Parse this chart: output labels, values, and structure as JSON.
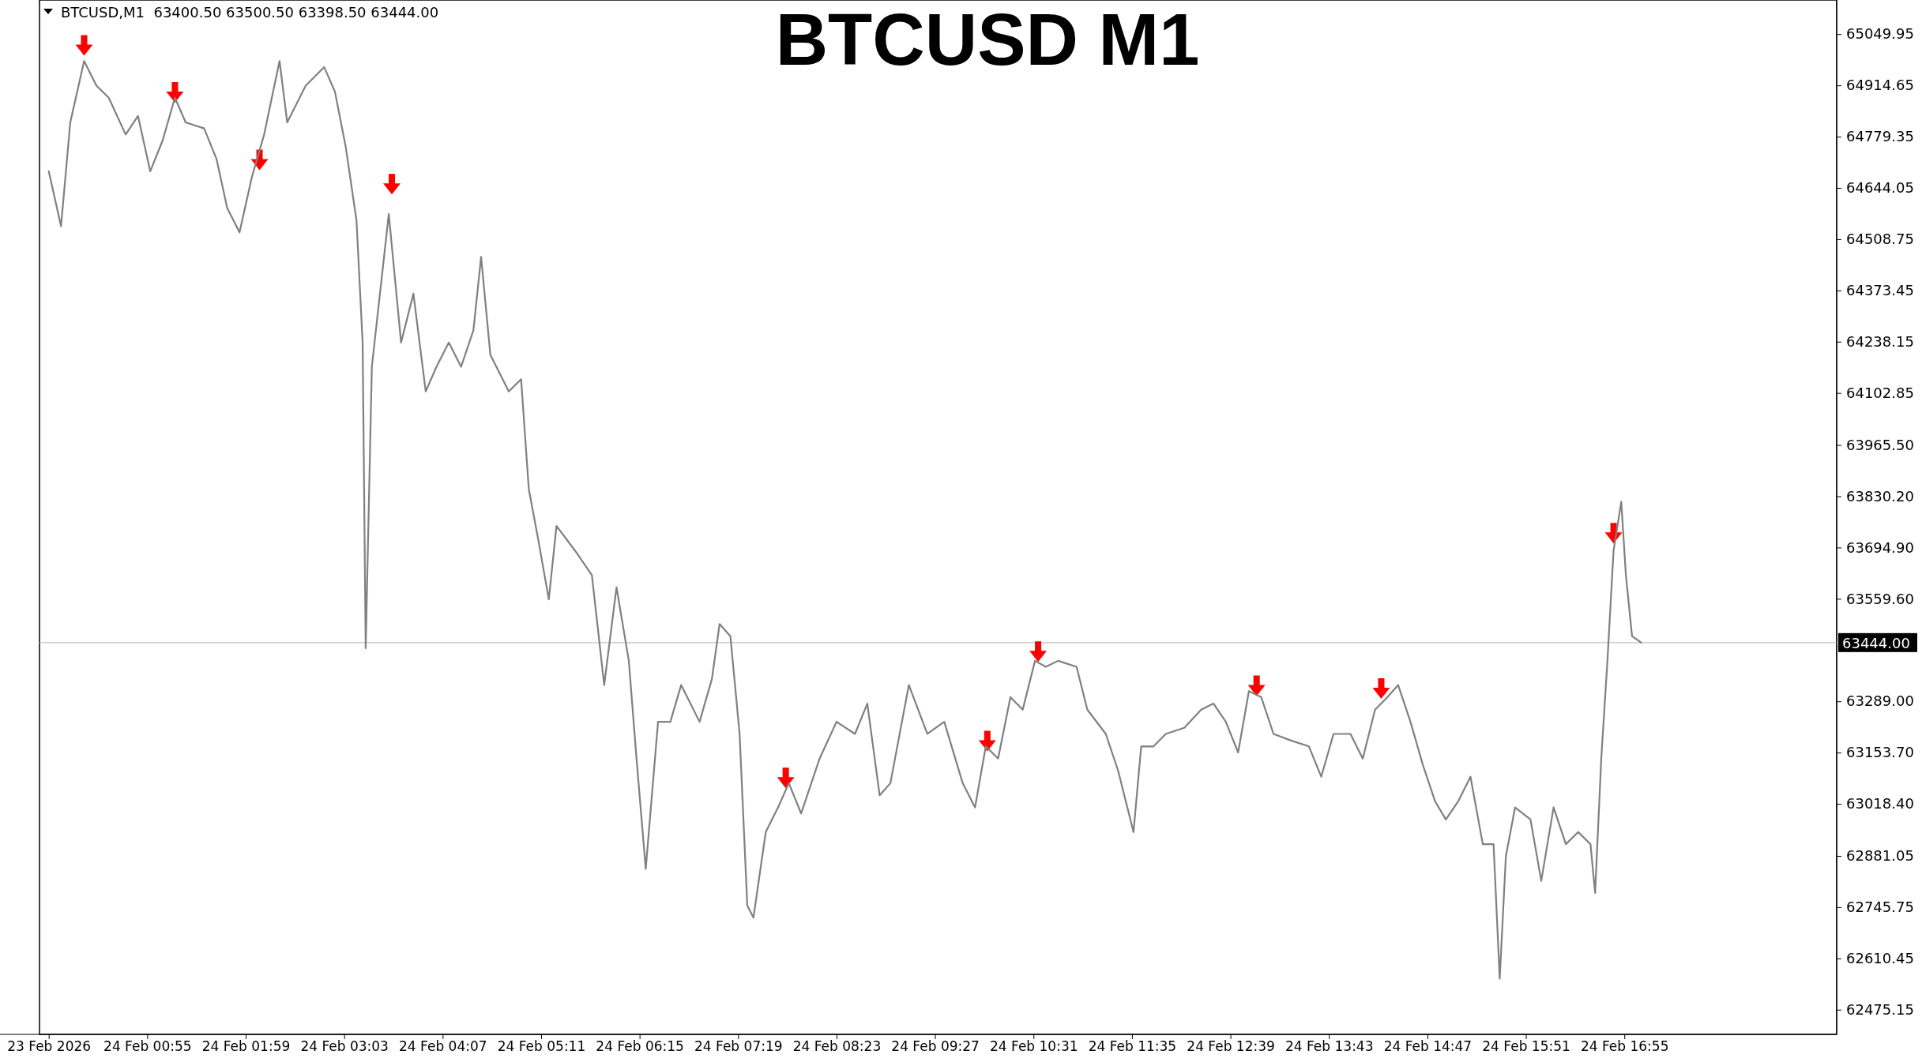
{
  "chart_data": {
    "type": "line",
    "title": "BTCUSD M1",
    "annotations": [
      "BTCUSD,M1  63400.50 63500.50 63398.50 63444.00"
    ],
    "xlim": [
      "2026-02-23T23:45",
      "2026-02-24T19:13"
    ],
    "xticks": [
      {
        "value": "2026-02-23T23:51",
        "label": "23 Feb 2026"
      },
      {
        "value": "2026-02-24T00:55",
        "label": "24 Feb 00:55"
      },
      {
        "value": "2026-02-24T01:59",
        "label": "24 Feb 01:59"
      },
      {
        "value": "2026-02-24T03:03",
        "label": "24 Feb 03:03"
      },
      {
        "value": "2026-02-24T04:07",
        "label": "24 Feb 04:07"
      },
      {
        "value": "2026-02-24T05:11",
        "label": "24 Feb 05:11"
      },
      {
        "value": "2026-02-24T06:15",
        "label": "24 Feb 06:15"
      },
      {
        "value": "2026-02-24T07:19",
        "label": "24 Feb 07:19"
      },
      {
        "value": "2026-02-24T08:23",
        "label": "24 Feb 08:23"
      },
      {
        "value": "2026-02-24T09:27",
        "label": "24 Feb 09:27"
      },
      {
        "value": "2026-02-24T10:31",
        "label": "24 Feb 10:31"
      },
      {
        "value": "2026-02-24T11:35",
        "label": "24 Feb 11:35"
      },
      {
        "value": "2026-02-24T12:39",
        "label": "24 Feb 12:39"
      },
      {
        "value": "2026-02-24T13:43",
        "label": "24 Feb 13:43"
      },
      {
        "value": "2026-02-24T14:47",
        "label": "24 Feb 14:47"
      },
      {
        "value": "2026-02-24T15:51",
        "label": "24 Feb 15:51"
      },
      {
        "value": "2026-02-24T16:55",
        "label": "24 Feb 16:55"
      }
    ],
    "ylim": [
      62410,
      65140
    ],
    "yticks": [
      {
        "value": 65049.95,
        "label": "65049.95"
      },
      {
        "value": 64914.65,
        "label": "64914.65"
      },
      {
        "value": 64779.35,
        "label": "64779.35"
      },
      {
        "value": 64644.05,
        "label": "64644.05"
      },
      {
        "value": 64508.75,
        "label": "64508.75"
      },
      {
        "value": 64373.45,
        "label": "64373.45"
      },
      {
        "value": 64238.15,
        "label": "64238.15"
      },
      {
        "value": 64102.85,
        "label": "64102.85"
      },
      {
        "value": 63965.5,
        "label": "63965.50"
      },
      {
        "value": 63830.2,
        "label": "63830.20"
      },
      {
        "value": 63694.9,
        "label": "63694.90"
      },
      {
        "value": 63559.6,
        "label": "63559.60"
      },
      {
        "value": 63289,
        "label": "63289.00"
      },
      {
        "value": 63153.7,
        "label": "63153.70"
      },
      {
        "value": 63018.4,
        "label": "63018.40"
      },
      {
        "value": 62881.05,
        "label": "62881.05"
      },
      {
        "value": 62745.75,
        "label": "62745.75"
      },
      {
        "value": 62610.45,
        "label": "62610.45"
      },
      {
        "value": 62475.15,
        "label": "62475.15"
      }
    ],
    "ref_lines": [
      {
        "axis": "y",
        "value": 63444,
        "label": "63444.00",
        "color": "#c0c0c0",
        "line_style": "solid"
      }
    ],
    "grid": false,
    "line_style": "solid",
    "series": [
      {
        "color": "#808080",
        "x": [
          "2026-02-23T23:51",
          "2026-02-23T23:59",
          "2026-02-24T00:05",
          "2026-02-24T00:14",
          "2026-02-24T00:22",
          "2026-02-24T00:30",
          "2026-02-24T00:41",
          "2026-02-24T00:49",
          "2026-02-24T00:57",
          "2026-02-24T01:05",
          "2026-02-24T01:13",
          "2026-02-24T01:20",
          "2026-02-24T01:32",
          "2026-02-24T01:40",
          "2026-02-24T01:47",
          "2026-02-24T01:55",
          "2026-02-24T02:03",
          "2026-02-24T02:11",
          "2026-02-24T02:21",
          "2026-02-24T02:26",
          "2026-02-24T02:38",
          "2026-02-24T02:50",
          "2026-02-24T02:57",
          "2026-02-24T03:04",
          "2026-02-24T03:11",
          "2026-02-24T03:15",
          "2026-02-24T03:17",
          "2026-02-24T03:21",
          "2026-02-24T03:32",
          "2026-02-24T03:40",
          "2026-02-24T03:48",
          "2026-02-24T03:56",
          "2026-02-24T04:03",
          "2026-02-24T04:11",
          "2026-02-24T04:19",
          "2026-02-24T04:27",
          "2026-02-24T04:32",
          "2026-02-24T04:38",
          "2026-02-24T04:50",
          "2026-02-24T04:58",
          "2026-02-24T05:03",
          "2026-02-24T05:09",
          "2026-02-24T05:16",
          "2026-02-24T05:21",
          "2026-02-24T05:33",
          "2026-02-24T05:44",
          "2026-02-24T05:52",
          "2026-02-24T06:00",
          "2026-02-24T06:08",
          "2026-02-24T06:13",
          "2026-02-24T06:19",
          "2026-02-24T06:27",
          "2026-02-24T06:35",
          "2026-02-24T06:42",
          "2026-02-24T06:54",
          "2026-02-24T07:02",
          "2026-02-24T07:07",
          "2026-02-24T07:14",
          "2026-02-24T07:20",
          "2026-02-24T07:25",
          "2026-02-24T07:29",
          "2026-02-24T07:37",
          "2026-02-24T07:45",
          "2026-02-24T07:52",
          "2026-02-24T08:00",
          "2026-02-24T08:12",
          "2026-02-24T08:23",
          "2026-02-24T08:35",
          "2026-02-24T08:43",
          "2026-02-24T08:51",
          "2026-02-24T08:58",
          "2026-02-24T09:10",
          "2026-02-24T09:22",
          "2026-02-24T09:33",
          "2026-02-24T09:45",
          "2026-02-24T09:53",
          "2026-02-24T10:00",
          "2026-02-24T10:08",
          "2026-02-24T10:16",
          "2026-02-24T10:24",
          "2026-02-24T10:32",
          "2026-02-24T10:39",
          "2026-02-24T10:47",
          "2026-02-24T10:59",
          "2026-02-24T11:06",
          "2026-02-24T11:18",
          "2026-02-24T11:26",
          "2026-02-24T11:36",
          "2026-02-24T11:41",
          "2026-02-24T11:49",
          "2026-02-24T11:57",
          "2026-02-24T12:09",
          "2026-02-24T12:20",
          "2026-02-24T12:28",
          "2026-02-24T12:36",
          "2026-02-24T12:44",
          "2026-02-24T12:51",
          "2026-02-24T12:59",
          "2026-02-24T13:07",
          "2026-02-24T13:18",
          "2026-02-24T13:30",
          "2026-02-24T13:38",
          "2026-02-24T13:46",
          "2026-02-24T13:57",
          "2026-02-24T14:05",
          "2026-02-24T14:13",
          "2026-02-24T14:21",
          "2026-02-24T14:28",
          "2026-02-24T14:36",
          "2026-02-24T14:44",
          "2026-02-24T14:52",
          "2026-02-24T14:59",
          "2026-02-24T15:07",
          "2026-02-24T15:15",
          "2026-02-24T15:23",
          "2026-02-24T15:30",
          "2026-02-24T15:34",
          "2026-02-24T15:38",
          "2026-02-24T15:44",
          "2026-02-24T15:54",
          "2026-02-24T16:01",
          "2026-02-24T16:09",
          "2026-02-24T16:17",
          "2026-02-24T16:25",
          "2026-02-24T16:33",
          "2026-02-24T16:36",
          "2026-02-24T16:40",
          "2026-02-24T16:44",
          "2026-02-24T16:48",
          "2026-02-24T16:53",
          "2026-02-24T16:56",
          "2026-02-24T17:00",
          "2026-02-24T17:06"
        ],
        "values": [
          64688,
          64543,
          64817,
          64979,
          64914,
          64882,
          64785,
          64834,
          64688,
          64769,
          64882,
          64817,
          64801,
          64721,
          64591,
          64527,
          64672,
          64785,
          64979,
          64817,
          64914,
          64963,
          64898,
          64753,
          64559,
          64236,
          63429,
          64172,
          64575,
          64236,
          64365,
          64107,
          64172,
          64236,
          64172,
          64268,
          64462,
          64204,
          64107,
          64139,
          63849,
          63719,
          63558,
          63752,
          63687,
          63622,
          63332,
          63590,
          63396,
          63138,
          62847,
          63235,
          63235,
          63332,
          63235,
          63348,
          63493,
          63461,
          63203,
          62750,
          62718,
          62944,
          63009,
          63073,
          62993,
          63138,
          63235,
          63203,
          63283,
          63041,
          63073,
          63332,
          63203,
          63235,
          63073,
          63009,
          63170,
          63138,
          63300,
          63267,
          63396,
          63380,
          63396,
          63380,
          63267,
          63203,
          63106,
          62944,
          63170,
          63170,
          63203,
          63219,
          63267,
          63283,
          63235,
          63154,
          63316,
          63300,
          63203,
          63186,
          63170,
          63090,
          63203,
          63203,
          63138,
          63267,
          63300,
          63332,
          63235,
          63122,
          63025,
          62977,
          63025,
          63090,
          62912,
          62912,
          62557,
          62880,
          63009,
          62977,
          62815,
          63009,
          62912,
          62944,
          62912,
          62783,
          63138,
          63396,
          63687,
          63816,
          63622,
          63461,
          63444
        ]
      },
      {
        "type": "scatter",
        "color": "#ff0000",
        "x": [
          "2026-02-24T00:14",
          "2026-02-24T01:13",
          "2026-02-24T02:08",
          "2026-02-24T03:34",
          "2026-02-24T07:50",
          "2026-02-24T10:01",
          "2026-02-24T10:34",
          "2026-02-24T12:56",
          "2026-02-24T14:17",
          "2026-02-24T16:48"
        ],
        "values": [
          65020,
          64896,
          64718,
          64654,
          63087,
          63184,
          63420,
          63330,
          63323,
          63733
        ]
      }
    ]
  }
}
